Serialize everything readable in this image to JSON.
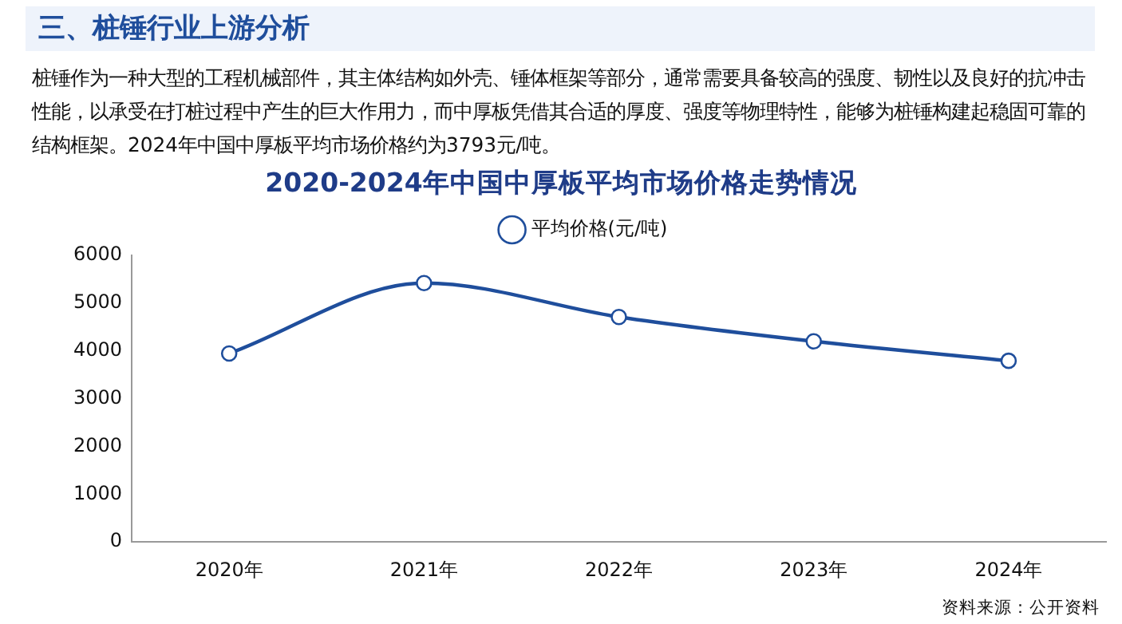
{
  "chart_data": {
    "type": "line",
    "title": "2020-2024年中国中厚板平均市场价格走势情况",
    "annotations": [
      "三、桩锤行业上游分析",
      "桩锤作为一种大型的工程机械部件，其主体结构如外壳、锤体框架等部分，通常需要具备较高的强度、韧性以及良好的抗冲击性能，以承受在打桩过程中产生的巨大作用力，而中厚板凭借其合适的厚度、强度等物理特性，能够为桩锤构建起稳固可靠的结构框架。2024年中国中厚板平均市场价格约为3793元/吨。",
      "资料来源：公开资料"
    ],
    "categories": [
      "2020年",
      "2021年",
      "2022年",
      "2023年",
      "2024年"
    ],
    "series": [
      {
        "name": "平均价格(元/吨)",
        "color": "#1f4e9c",
        "values": [
          3945,
          5420,
          4710,
          4200,
          3793
        ]
      }
    ],
    "ylim": [
      0,
      6000
    ],
    "yticks": [
      0,
      1000,
      2000,
      3000,
      4000,
      5000,
      6000
    ],
    "grid": false,
    "legend": "top",
    "marker": "circle",
    "line_style": "solid"
  }
}
